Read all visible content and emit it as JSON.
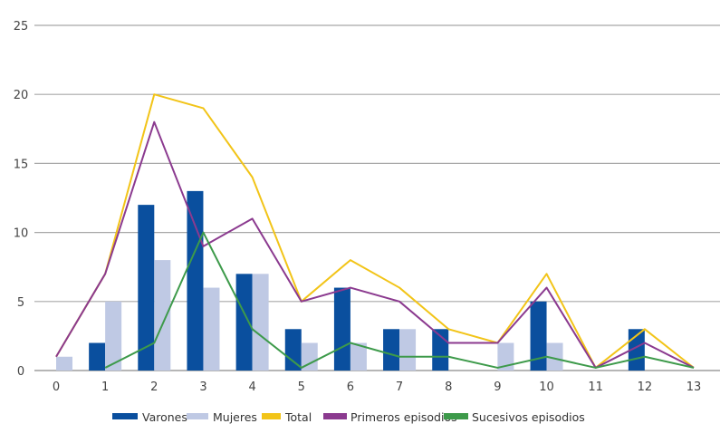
{
  "chart_data": {
    "type": "bar",
    "title": "",
    "xlabel": "",
    "ylabel": "",
    "x": [
      0,
      1,
      2,
      3,
      4,
      5,
      6,
      7,
      8,
      9,
      10,
      11,
      12,
      13
    ],
    "ylim": [
      0,
      25
    ],
    "yticks": [
      0,
      5,
      10,
      15,
      20,
      25
    ],
    "grid": true,
    "legend_position": "bottom",
    "series": [
      {
        "name": "Varones",
        "kind": "bar",
        "color": "#0a4f9e",
        "values": [
          0,
          2,
          12,
          13,
          7,
          3,
          6,
          3,
          3,
          0,
          5,
          0,
          3,
          0
        ]
      },
      {
        "name": "Mujeres",
        "kind": "bar",
        "color": "#bfc9e4",
        "values": [
          1,
          5,
          8,
          6,
          7,
          2,
          2,
          3,
          0,
          2,
          2,
          0,
          0,
          0
        ]
      },
      {
        "name": "Total",
        "kind": "line",
        "color": "#f2c418",
        "values": [
          1,
          7,
          20,
          19,
          14,
          5,
          8,
          6,
          3,
          2,
          7,
          0,
          3,
          0
        ]
      },
      {
        "name": "Primeros episodios",
        "kind": "line",
        "color": "#8b3a8f",
        "values": [
          1,
          7,
          18,
          9,
          11,
          5,
          6,
          5,
          2,
          2,
          6,
          0,
          2,
          0
        ]
      },
      {
        "name": "Sucesivos episodios",
        "kind": "line",
        "color": "#3d9a4a",
        "values": [
          null,
          0,
          2,
          10,
          3,
          0,
          2,
          1,
          1,
          0,
          1,
          0,
          1,
          0
        ]
      }
    ]
  }
}
